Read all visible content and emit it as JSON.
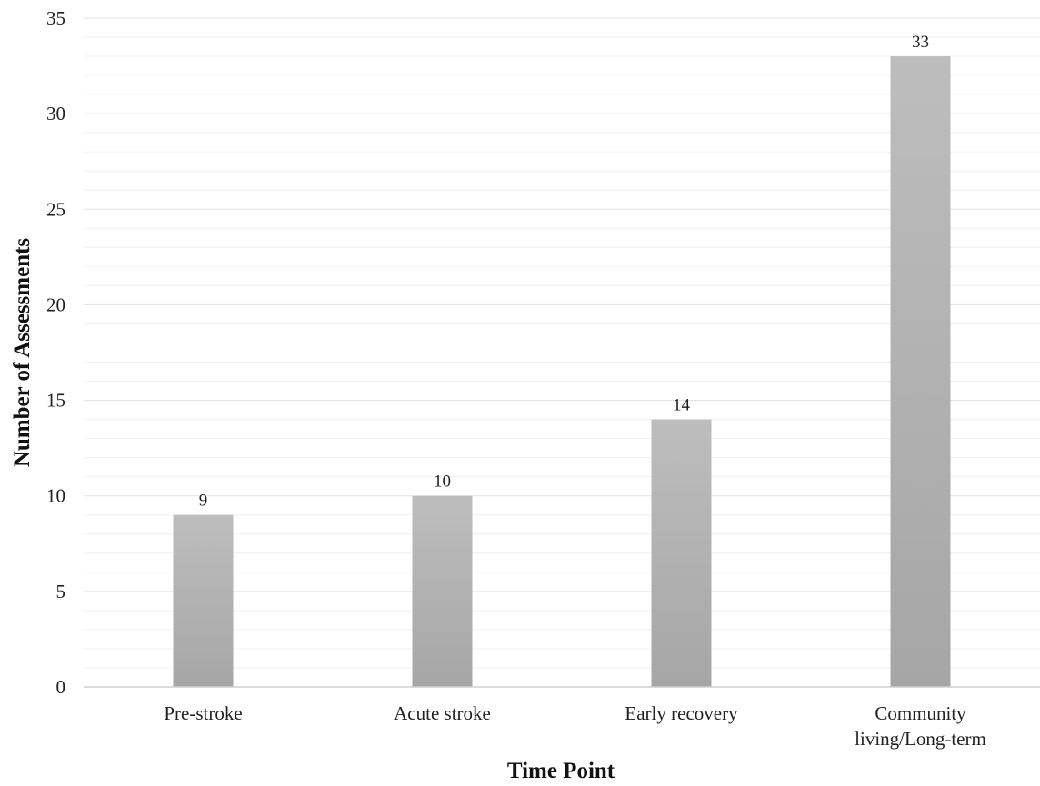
{
  "chart_data": {
    "type": "bar",
    "title": "",
    "xlabel": "Time Point",
    "ylabel": "Number of Assessments",
    "categories": [
      [
        "Pre-stroke"
      ],
      [
        "Acute stroke"
      ],
      [
        "Early recovery"
      ],
      [
        "Community",
        "living/Long-term"
      ]
    ],
    "values": [
      9,
      10,
      14,
      33
    ],
    "data_labels": [
      "9",
      "10",
      "14",
      "33"
    ],
    "ylim": [
      0,
      35
    ],
    "yticks": [
      0,
      5,
      10,
      15,
      20,
      25,
      30,
      35
    ],
    "ytick_labels": [
      "0",
      "5",
      "10",
      "15",
      "20",
      "25",
      "30",
      "35"
    ],
    "grid": true,
    "legend": "none",
    "colors": {
      "bar_top": "#bdbdbd",
      "bar_bottom": "#a6a6a6",
      "major_grid": "#e3e3e3",
      "minor_grid": "#f0f0f0",
      "axis": "#cfcfcf"
    }
  }
}
